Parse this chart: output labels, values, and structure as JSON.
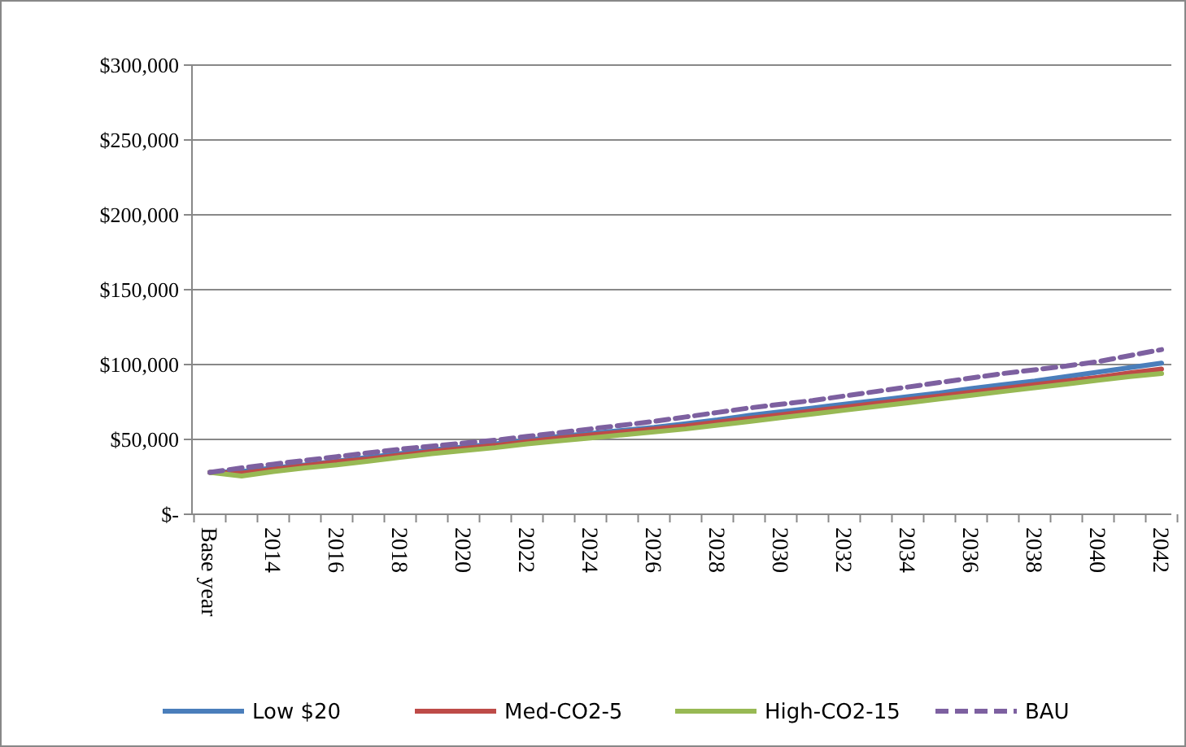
{
  "chart_data": {
    "type": "line",
    "categories": [
      "Base year",
      null,
      "2014",
      null,
      "2016",
      null,
      "2018",
      null,
      "2020",
      null,
      "2022",
      null,
      "2024",
      null,
      "2026",
      null,
      "2028",
      null,
      "2030",
      null,
      "2032",
      null,
      "2034",
      null,
      "2036",
      null,
      "2038",
      null,
      "2040",
      null,
      "2042"
    ],
    "series": [
      {
        "name": "Low $20",
        "color": "#4a7ebb",
        "values": [
          28000,
          28500,
          31000,
          33000,
          35500,
          38000,
          40500,
          43000,
          45000,
          47000,
          49500,
          52000,
          54000,
          56000,
          58000,
          60500,
          63000,
          66000,
          68500,
          71000,
          73500,
          76000,
          78500,
          81000,
          84000,
          86500,
          89000,
          92000,
          95000,
          98000,
          101000
        ]
      },
      {
        "name": "Med-CO2-5",
        "color": "#be4b48",
        "values": [
          28000,
          27500,
          30000,
          32500,
          35000,
          37000,
          39500,
          42000,
          44000,
          46000,
          48500,
          51000,
          53000,
          55000,
          57000,
          59000,
          61500,
          64000,
          66500,
          69000,
          71500,
          74000,
          76500,
          79000,
          81500,
          84000,
          86500,
          89000,
          91500,
          94500,
          97000
        ]
      },
      {
        "name": "High-CO2-15",
        "color": "#98b954",
        "values": [
          28000,
          25500,
          28500,
          31000,
          33000,
          35500,
          38000,
          40500,
          42500,
          44500,
          47000,
          49000,
          51000,
          53000,
          55000,
          57000,
          59500,
          62000,
          64500,
          67000,
          69500,
          72000,
          74500,
          77000,
          79500,
          82000,
          84500,
          87000,
          89500,
          92000,
          94000
        ]
      },
      {
        "name": "BAU",
        "color": "#7d60a0",
        "line_style": "dashed",
        "values": [
          28000,
          31000,
          33500,
          36000,
          38500,
          41000,
          43500,
          45500,
          47500,
          49500,
          52000,
          54500,
          57000,
          59500,
          62000,
          65000,
          68000,
          71000,
          73500,
          76000,
          79000,
          82000,
          85000,
          88000,
          91000,
          94000,
          96500,
          99000,
          102000,
          106000,
          110000
        ]
      }
    ],
    "ylim": [
      0,
      300000
    ],
    "yticks": [
      {
        "value": 0,
        "label": "$-"
      },
      {
        "value": 50000,
        "label": "$50,000"
      },
      {
        "value": 100000,
        "label": "$100,000"
      },
      {
        "value": 150000,
        "label": "$150,000"
      },
      {
        "value": 200000,
        "label": "$200,000"
      },
      {
        "value": 250000,
        "label": "$250,000"
      },
      {
        "value": 300000,
        "label": "$300,000"
      }
    ],
    "grid": "y",
    "legend": "bottom",
    "line_style": "solid"
  }
}
